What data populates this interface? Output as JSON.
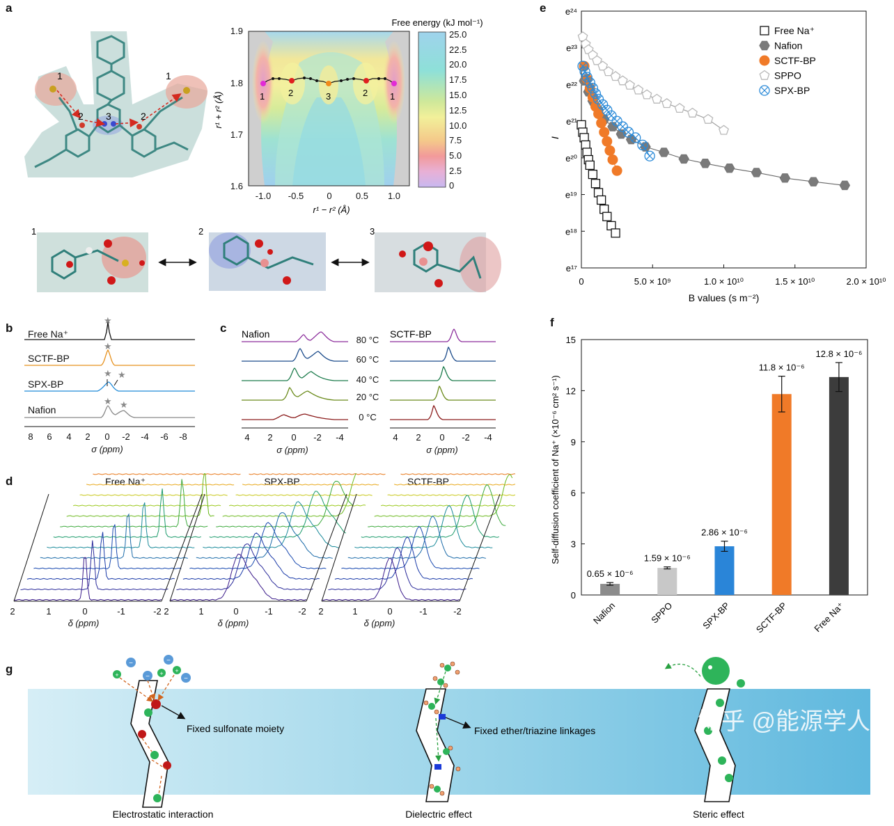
{
  "panels": {
    "a": "a",
    "b": "b",
    "c": "c",
    "d": "d",
    "e": "e",
    "f": "f",
    "g": "g"
  },
  "colors": {
    "sctf": "#f07a28",
    "spx": "#2a8ad8",
    "nafion": "#8a8a8a",
    "free": "#111111",
    "sppo": "#c8c8c8",
    "membrane": "#7cc8e4",
    "sodium": "#2eb45a",
    "sulfonate": "#c01818",
    "anion": "#5a9ad8"
  },
  "panel_a": {
    "colorbar_title": "Free energy (kJ mol⁻¹)",
    "colorbar_ticks": [
      "25.0",
      "22.5",
      "20.0",
      "17.5",
      "15.0",
      "12.5",
      "10.0",
      "7.5",
      "5.0",
      "2.5",
      "0"
    ],
    "x_ticks": [
      "-1.0",
      "-0.5",
      "0",
      "0.5",
      "1.0"
    ],
    "y_ticks": [
      "1.9",
      "1.8",
      "1.7",
      "1.6"
    ],
    "xlabel": "r¹ − r² (Å)",
    "ylabel": "r¹ + r² (Å)",
    "path_labels": [
      "1",
      "2",
      "3",
      "2",
      "1"
    ],
    "molecule_labels": [
      "1",
      "2",
      "3",
      "2",
      "1"
    ],
    "snapshot_labels": [
      "1",
      "2",
      "3"
    ]
  },
  "panel_b": {
    "traces": [
      "Free Na⁺",
      "SCTF-BP",
      "SPX-BP",
      "Nafion"
    ],
    "x_ticks": [
      "8",
      "6",
      "4",
      "2",
      "0",
      "-2",
      "-4",
      "-6",
      "-8"
    ],
    "xlabel": "σ (ppm)"
  },
  "panel_c": {
    "left_title": "Nafion",
    "right_title": "SCTF-BP",
    "temps": [
      "80 °C",
      "60 °C",
      "40 °C",
      "20 °C",
      "0 °C"
    ],
    "x_ticks": [
      "4",
      "2",
      "0",
      "-2",
      "-4"
    ],
    "xlabel": "σ (ppm)"
  },
  "panel_d": {
    "titles": [
      "Free Na⁺",
      "SPX-BP",
      "SCTF-BP"
    ],
    "x_ticks": [
      "2",
      "1",
      "0",
      "-1",
      "-2"
    ],
    "xlabel": "δ (ppm)"
  },
  "chart_data": [
    {
      "id": "e",
      "type": "scatter",
      "xlabel": "B values (s m⁻²)",
      "ylabel": "I",
      "y_scale": "natural-log",
      "ylim_exp": [
        17,
        24
      ],
      "x_ticks": [
        "0",
        "5.0 × 10⁹",
        "1.0 × 10¹⁰",
        "1.5 × 10¹⁰",
        "2.0 × 10¹⁰"
      ],
      "y_ticks": [
        "e²⁴",
        "e²³",
        "e²²",
        "e²¹",
        "e²⁰",
        "e¹⁹",
        "e¹⁸",
        "e¹⁷"
      ],
      "series": [
        {
          "name": "Free Na⁺",
          "marker": "square",
          "x": [
            0.0,
            0.1,
            0.2,
            0.3,
            0.4,
            0.5,
            0.6,
            0.8,
            1.0,
            1.2,
            1.4,
            1.6,
            1.8,
            2.1,
            2.4
          ],
          "y": [
            20.9,
            20.7,
            20.55,
            20.35,
            20.15,
            19.95,
            19.8,
            19.55,
            19.3,
            19.05,
            18.85,
            18.6,
            18.4,
            18.15,
            17.95
          ]
        },
        {
          "name": "Nafion",
          "marker": "hexagon",
          "x": [
            0.2,
            0.5,
            0.8,
            1.2,
            1.6,
            2.2,
            2.8,
            3.5,
            4.5,
            5.8,
            7.2,
            8.7,
            10.4,
            12.3,
            14.3,
            16.3,
            18.5
          ],
          "y": [
            22.1,
            21.8,
            21.55,
            21.3,
            21.05,
            20.85,
            20.65,
            20.5,
            20.3,
            20.15,
            19.97,
            19.85,
            19.72,
            19.6,
            19.45,
            19.35,
            19.25
          ]
        },
        {
          "name": "SCTF-BP",
          "marker": "circle",
          "x": [
            0.2,
            0.4,
            0.6,
            0.8,
            1.0,
            1.2,
            1.4,
            1.6,
            1.8,
            2.0,
            2.2,
            2.5
          ],
          "y": [
            22.5,
            22.15,
            21.9,
            21.65,
            21.4,
            21.2,
            20.95,
            20.7,
            20.45,
            20.2,
            19.95,
            19.65
          ]
        },
        {
          "name": "SPPO",
          "marker": "pentagon",
          "x": [
            0.1,
            0.3,
            0.5,
            0.8,
            1.1,
            1.5,
            1.9,
            2.4,
            2.9,
            3.4,
            4.0,
            4.6,
            5.3,
            6.0,
            6.9,
            7.8,
            8.9,
            10.0
          ],
          "y": [
            23.3,
            23.1,
            22.95,
            22.8,
            22.65,
            22.5,
            22.35,
            22.22,
            22.1,
            21.98,
            21.85,
            21.72,
            21.6,
            21.48,
            21.35,
            21.22,
            21.05,
            20.75
          ]
        },
        {
          "name": "SPX-BP",
          "marker": "crossed-circle",
          "x": [
            0.1,
            0.25,
            0.4,
            0.6,
            0.8,
            1.0,
            1.2,
            1.5,
            1.8,
            2.1,
            2.5,
            2.9,
            3.3,
            3.8,
            4.3,
            4.8
          ],
          "y": [
            22.5,
            22.35,
            22.2,
            22.05,
            21.9,
            21.75,
            21.6,
            21.45,
            21.3,
            21.15,
            21.0,
            20.85,
            20.7,
            20.55,
            20.35,
            20.05
          ]
        }
      ]
    },
    {
      "id": "f",
      "type": "bar",
      "ylabel": "Self-diffusion coefficient of Na⁺ (×10⁻⁶ cm² s⁻¹)",
      "ylim": [
        0,
        15
      ],
      "y_ticks": [
        "0",
        "3",
        "6",
        "9",
        "12",
        "15"
      ],
      "categories": [
        "Nafion",
        "SPPO",
        "SPX-BP",
        "SCTF-BP",
        "Free Na⁺"
      ],
      "values": [
        0.65,
        1.59,
        2.86,
        11.8,
        12.8
      ],
      "errors": [
        0.08,
        0.06,
        0.3,
        1.05,
        0.85
      ],
      "bar_colors": [
        "#8c8c8c",
        "#c8c8c8",
        "#2a85d8",
        "#f07a28",
        "#3c3c3c"
      ],
      "value_labels": [
        "0.65 × 10⁻⁶",
        "1.59 × 10⁻⁶",
        "2.86 × 10⁻⁶",
        "11.8 × 10⁻⁶",
        "12.8 × 10⁻⁶"
      ]
    }
  ],
  "panel_g": {
    "annotation_sulfonate": "Fixed sulfonate moiety",
    "annotation_ether": "Fixed ether/triazine linkages",
    "caption_1": "Electrostatic interaction",
    "caption_2": "Dielectric effect",
    "caption_3": "Steric effect"
  },
  "watermark": "知乎 @能源学人"
}
